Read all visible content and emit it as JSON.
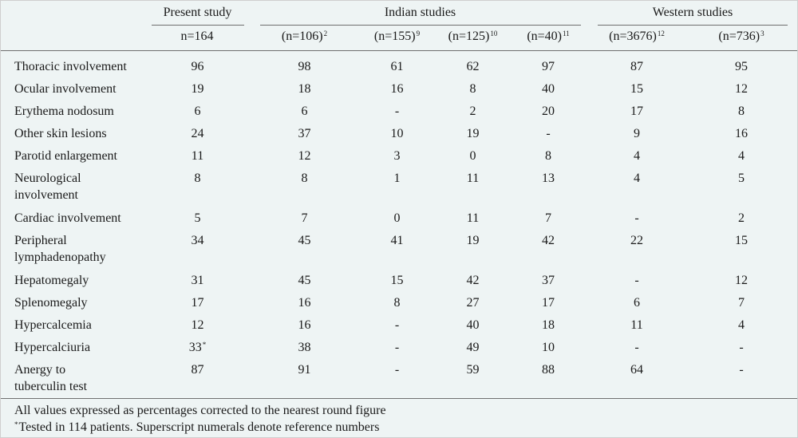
{
  "header": {
    "groups": {
      "present": "Present study",
      "indian": "Indian studies",
      "western": "Western studies"
    },
    "cols": [
      {
        "base": "n=164",
        "sup": ""
      },
      {
        "base": "(n=106)",
        "sup": "2"
      },
      {
        "base": "(n=155)",
        "sup": "9"
      },
      {
        "base": "(n=125)",
        "sup": "10"
      },
      {
        "base": "(n=40)",
        "sup": "11"
      },
      {
        "base": "(n=3676)",
        "sup": "12"
      },
      {
        "base": "(n=736)",
        "sup": "3"
      }
    ]
  },
  "rows": [
    {
      "label": "Thoracic involvement",
      "values": [
        "96",
        "98",
        "61",
        "62",
        "97",
        "87",
        "95"
      ],
      "note": ""
    },
    {
      "label": "Ocular involvement",
      "values": [
        "19",
        "18",
        "16",
        "8",
        "40",
        "15",
        "12"
      ],
      "note": ""
    },
    {
      "label": "Erythema nodosum",
      "values": [
        "6",
        "6",
        "-",
        "2",
        "20",
        "17",
        "8"
      ],
      "note": ""
    },
    {
      "label": "Other skin lesions",
      "values": [
        "24",
        "37",
        "10",
        "19",
        "-",
        "9",
        "16"
      ],
      "note": ""
    },
    {
      "label": "Parotid enlargement",
      "values": [
        "11",
        "12",
        "3",
        "0",
        "8",
        "4",
        "4"
      ],
      "note": ""
    },
    {
      "label": "Neurological involvement",
      "values": [
        "8",
        "8",
        "1",
        "11",
        "13",
        "4",
        "5"
      ],
      "note": ""
    },
    {
      "label": "Cardiac involvement",
      "values": [
        "5",
        "7",
        "0",
        "11",
        "7",
        "-",
        "2"
      ],
      "note": ""
    },
    {
      "label": "Peripheral lymphadenopathy",
      "values": [
        "34",
        "45",
        "41",
        "19",
        "42",
        "22",
        "15"
      ],
      "note": ""
    },
    {
      "label": "Hepatomegaly",
      "values": [
        "31",
        "45",
        "15",
        "42",
        "37",
        "-",
        "12"
      ],
      "note": ""
    },
    {
      "label": "Splenomegaly",
      "values": [
        "17",
        "16",
        "8",
        "27",
        "17",
        "6",
        "7"
      ],
      "note": ""
    },
    {
      "label": "Hypercalcemia",
      "values": [
        "12",
        "16",
        "-",
        "40",
        "18",
        "11",
        "4"
      ],
      "note": ""
    },
    {
      "label": "Hypercalciuria",
      "values": [
        "33",
        "38",
        "-",
        "49",
        "10",
        "-",
        "-"
      ],
      "note": "*"
    },
    {
      "label": "Anergy to tuberculin test",
      "values": [
        "87",
        "91",
        "-",
        "59",
        "88",
        "64",
        "-"
      ],
      "note": ""
    }
  ],
  "footer": {
    "line1": "All values expressed as percentages corrected to the nearest round figure",
    "line2_mark": "*",
    "line2": "Tested in 114 patients. Superscript numerals denote reference numbers"
  }
}
